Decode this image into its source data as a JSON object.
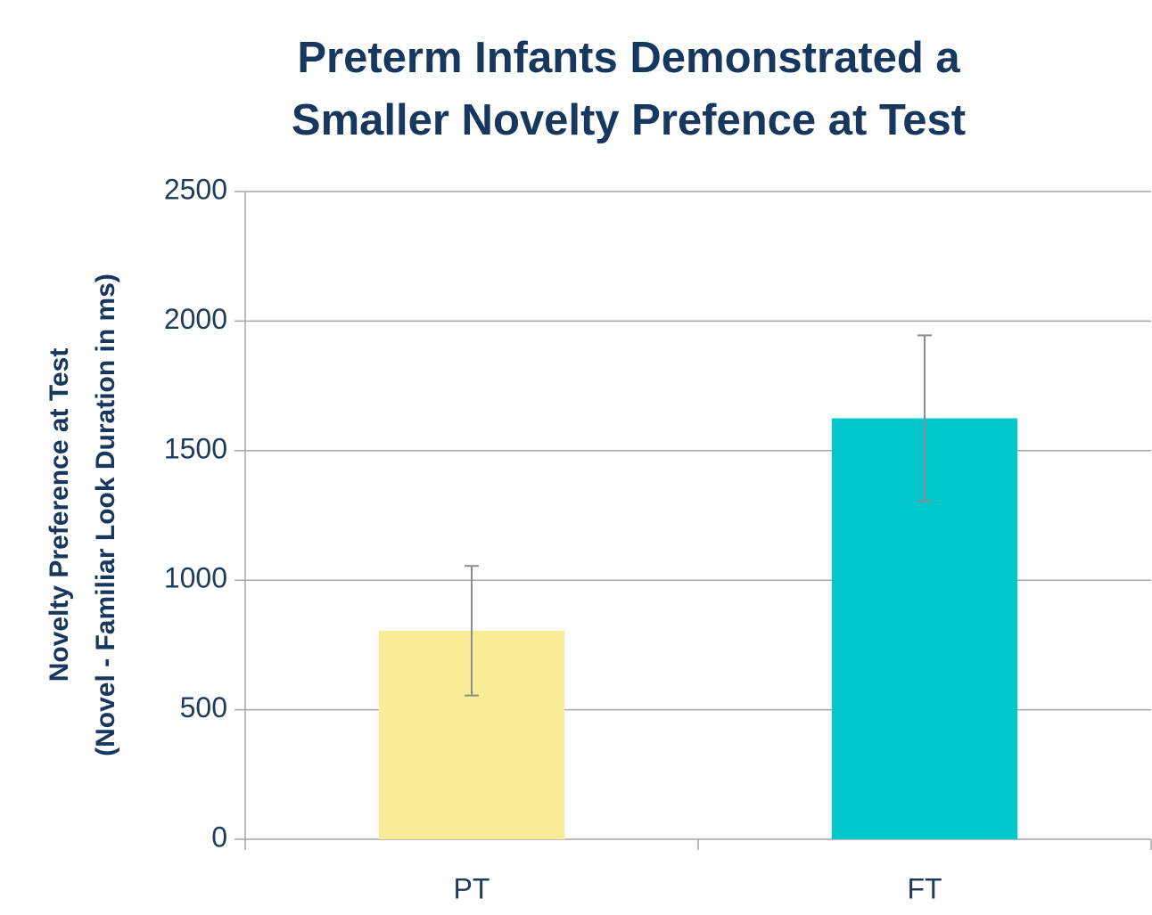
{
  "chart_data": {
    "type": "bar",
    "title": [
      "Preterm Infants Demonstrated a",
      "Smaller Novelty Prefence at Test"
    ],
    "y_label": [
      "Novelty Preference at Test",
      "(Novel - Familiar Look Duration in ms)"
    ],
    "categories": [
      "PT",
      "FT"
    ],
    "values": [
      805,
      1625
    ],
    "errors": [
      250,
      320
    ],
    "colors": [
      "#faeb96",
      "#00c8cc"
    ],
    "ylim": [
      0,
      2500
    ],
    "yticks": [
      0,
      500,
      1000,
      1500,
      2000,
      2500
    ],
    "grid": true
  }
}
